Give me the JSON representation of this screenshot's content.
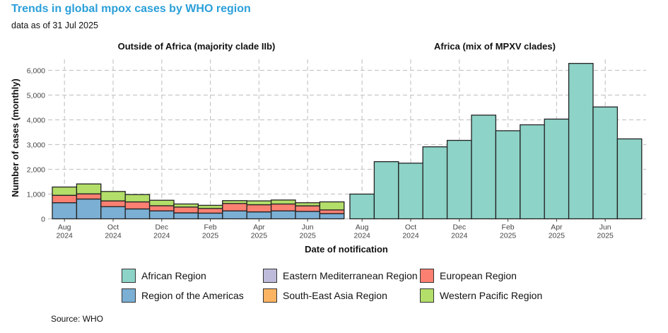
{
  "title": "Trends in global mpox cases by WHO region",
  "subtitle": "data as of 31 Jul 2025",
  "source": "Source: WHO",
  "chart_data": {
    "type": "bar",
    "stacked": true,
    "ylabel": "Number of cases (monthly)",
    "xlabel": "Date of notification",
    "ylim": [
      0,
      6500
    ],
    "yticks": [
      "0",
      "1,000",
      "2,000",
      "3,000",
      "4,000",
      "5,000",
      "6,000"
    ],
    "ytick_values": [
      0,
      1000,
      2000,
      3000,
      4000,
      5000,
      6000
    ],
    "months": [
      "Aug 2024",
      "Sep 2024",
      "Oct 2024",
      "Nov 2024",
      "Dec 2024",
      "Jan 2025",
      "Feb 2025",
      "Mar 2025",
      "Apr 2025",
      "May 2025",
      "Jun 2025",
      "Jul 2025"
    ],
    "xtick_labels": [
      {
        "month": "Aug",
        "year": "2024",
        "index": 0
      },
      {
        "month": "Oct",
        "year": "2024",
        "index": 2
      },
      {
        "month": "Dec",
        "year": "2024",
        "index": 4
      },
      {
        "month": "Feb",
        "year": "2025",
        "index": 6
      },
      {
        "month": "Apr",
        "year": "2025",
        "index": 8
      },
      {
        "month": "Jun",
        "year": "2025",
        "index": 10
      }
    ],
    "grid": true,
    "legend_position": "bottom",
    "panels": [
      {
        "title": "Outside of Africa (majority clade IIb)",
        "series": [
          {
            "name": "Region of the Americas",
            "color": "#7bafd4",
            "values": [
              650,
              800,
              490,
              400,
              320,
              240,
              230,
              320,
              280,
              320,
              300,
              210
            ]
          },
          {
            "name": "South-East Asia Region",
            "color": "#fdb462",
            "values": [
              0,
              0,
              0,
              0,
              0,
              0,
              0,
              0,
              0,
              0,
              0,
              0
            ]
          },
          {
            "name": "European Region",
            "color": "#fb8072",
            "values": [
              300,
              210,
              235,
              285,
              210,
              235,
              190,
              300,
              290,
              280,
              225,
              150
            ]
          },
          {
            "name": "Eastern Mediterranean Region",
            "color": "#bebada",
            "values": [
              0,
              0,
              0,
              0,
              0,
              0,
              0,
              0,
              0,
              0,
              0,
              0
            ]
          },
          {
            "name": "Western Pacific Region",
            "color": "#b3de69",
            "values": [
              335,
              400,
              380,
              295,
              220,
              125,
              125,
              115,
              155,
              160,
              125,
              325
            ]
          }
        ]
      },
      {
        "title": "Africa (mix of MPXV clades)",
        "series": [
          {
            "name": "African Region",
            "color": "#8dd3c7",
            "values": [
              1000,
              2310,
              2250,
              2910,
              3170,
              4190,
              3560,
              3800,
              4030,
              6280,
              4520,
              3230
            ]
          }
        ]
      }
    ],
    "legend": [
      {
        "name": "African Region",
        "color": "#8dd3c7"
      },
      {
        "name": "Eastern Mediterranean Region",
        "color": "#bebada"
      },
      {
        "name": "European Region",
        "color": "#fb8072"
      },
      {
        "name": "Region of the Americas",
        "color": "#7bafd4"
      },
      {
        "name": "South-East Asia Region",
        "color": "#fdb462"
      },
      {
        "name": "Western Pacific Region",
        "color": "#b3de69"
      }
    ]
  }
}
